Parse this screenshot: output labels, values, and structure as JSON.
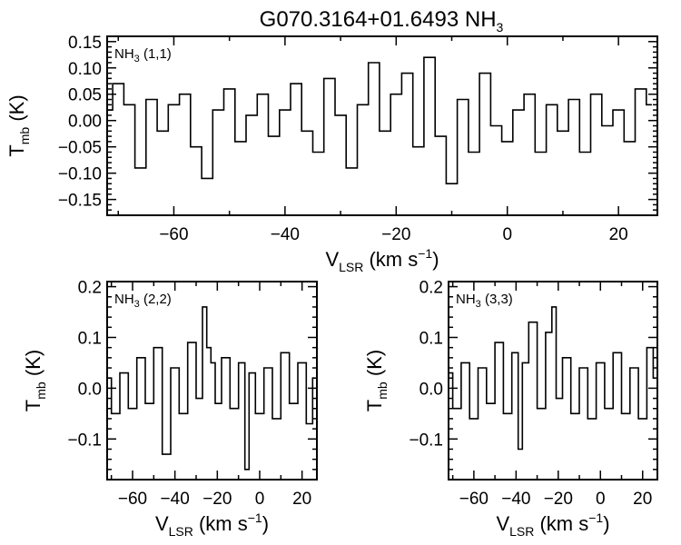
{
  "figure": {
    "title_main": "G070.3164+01.6493 NH",
    "title_sub": "3"
  },
  "chart_data": [
    {
      "type": "line",
      "panel": "NH3 (1,1)",
      "label_main": "NH",
      "label_sub": "3",
      "label_trans": " (1,1)",
      "xlabel_main": "V",
      "xlabel_sub": "LSR",
      "xlabel_unit": " (km s",
      "xlabel_exp": "−1",
      "xlabel_close": ")",
      "ylabel_main": "T",
      "ylabel_sub": "mb",
      "ylabel_unit": " (K)",
      "xlim": [
        -72,
        27
      ],
      "ylim": [
        -0.18,
        0.16
      ],
      "xticks": [
        -60,
        -40,
        -20,
        0,
        20
      ],
      "xtick_labels": [
        "−60",
        "−40",
        "−20",
        "0",
        "20"
      ],
      "yticks": [
        0.15,
        0.1,
        0.05,
        0.0,
        -0.05,
        -0.1,
        -0.15
      ],
      "ytick_labels": [
        "0.15",
        "0.10",
        "0.05",
        "0.00",
        "−0.05",
        "−0.10",
        "−0.15"
      ],
      "series": [
        {
          "x": [
            -72,
            -70,
            -68,
            -66,
            -64,
            -62,
            -60,
            -58,
            -56,
            -54,
            -52,
            -50,
            -48,
            -46,
            -44,
            -42,
            -40,
            -38,
            -36,
            -34,
            -32,
            -30,
            -28,
            -26,
            -24,
            -22,
            -20,
            -18,
            -16,
            -14,
            -12,
            -10,
            -8,
            -6,
            -4,
            -2,
            0,
            2,
            4,
            6,
            8,
            10,
            12,
            14,
            16,
            18,
            20,
            22,
            24,
            26
          ],
          "y": [
            0.02,
            0.07,
            0.03,
            -0.09,
            0.04,
            -0.02,
            0.03,
            0.05,
            -0.05,
            -0.11,
            0.02,
            0.06,
            -0.04,
            0.01,
            0.05,
            -0.03,
            0.02,
            0.07,
            -0.02,
            -0.06,
            0.08,
            0.01,
            -0.09,
            0.03,
            0.11,
            -0.02,
            0.05,
            0.09,
            -0.05,
            0.12,
            -0.03,
            -0.12,
            0.04,
            -0.06,
            0.09,
            -0.01,
            -0.04,
            0.02,
            0.05,
            -0.06,
            0.03,
            -0.02,
            0.04,
            -0.06,
            0.05,
            -0.01,
            0.02,
            -0.04,
            0.06,
            0.03
          ]
        }
      ]
    },
    {
      "type": "line",
      "panel": "NH3 (2,2)",
      "label_main": "NH",
      "label_sub": "3",
      "label_trans": " (2,2)",
      "xlabel_main": "V",
      "xlabel_sub": "LSR",
      "xlabel_unit": " (km s",
      "xlabel_exp": "−1",
      "xlabel_close": ")",
      "ylabel_main": "T",
      "ylabel_sub": "mb",
      "ylabel_unit": " (K)",
      "xlim": [
        -72,
        27
      ],
      "ylim": [
        -0.18,
        0.21
      ],
      "xticks": [
        -60,
        -40,
        -20,
        0,
        20
      ],
      "xtick_labels": [
        "−60",
        "−40",
        "−20",
        "0",
        "20"
      ],
      "yticks": [
        0.2,
        0.1,
        0.0,
        -0.1
      ],
      "ytick_labels": [
        "0.2",
        "0.1",
        "0.0",
        "−0.1"
      ],
      "series": [
        {
          "x": [
            -72,
            -68,
            -64,
            -60,
            -56,
            -52,
            -48,
            -44,
            -40,
            -36,
            -32,
            -28,
            -26,
            -24,
            -22,
            -20,
            -16,
            -12,
            -8,
            -6,
            -4,
            0,
            4,
            8,
            12,
            16,
            20,
            24,
            26
          ],
          "y": [
            0.02,
            -0.05,
            0.03,
            -0.04,
            0.06,
            -0.03,
            0.08,
            -0.13,
            0.04,
            -0.05,
            0.09,
            -0.02,
            0.16,
            0.08,
            0.05,
            -0.03,
            0.06,
            -0.04,
            0.05,
            -0.16,
            0.03,
            -0.05,
            0.04,
            -0.06,
            0.07,
            -0.03,
            0.05,
            -0.07,
            0.02
          ]
        }
      ]
    },
    {
      "type": "line",
      "panel": "NH3 (3,3)",
      "label_main": "NH",
      "label_sub": "3",
      "label_trans": " (3,3)",
      "xlabel_main": "V",
      "xlabel_sub": "LSR",
      "xlabel_unit": " (km s",
      "xlabel_exp": "−1",
      "xlabel_close": ")",
      "ylabel_main": "T",
      "ylabel_sub": "mb",
      "ylabel_unit": " (K)",
      "xlim": [
        -72,
        27
      ],
      "ylim": [
        -0.18,
        0.21
      ],
      "xticks": [
        -60,
        -40,
        -20,
        0,
        20
      ],
      "xtick_labels": [
        "−60",
        "−40",
        "−20",
        "0",
        "20"
      ],
      "yticks": [
        0.2,
        0.1,
        0.0,
        -0.1
      ],
      "ytick_labels": [
        "0.2",
        "0.1",
        "0.0",
        "−0.1"
      ],
      "series": [
        {
          "x": [
            -72,
            -68,
            -64,
            -60,
            -56,
            -52,
            -48,
            -44,
            -40,
            -38,
            -36,
            -32,
            -28,
            -24,
            -22,
            -20,
            -16,
            -12,
            -8,
            -4,
            0,
            4,
            8,
            12,
            16,
            20,
            24,
            26
          ],
          "y": [
            0.03,
            -0.04,
            0.05,
            -0.06,
            0.04,
            -0.03,
            0.09,
            -0.05,
            0.07,
            -0.12,
            0.05,
            0.13,
            -0.04,
            0.11,
            0.16,
            -0.02,
            0.06,
            -0.05,
            0.04,
            -0.06,
            0.05,
            -0.04,
            0.07,
            -0.05,
            0.04,
            -0.06,
            0.08,
            0.02
          ]
        }
      ]
    }
  ]
}
